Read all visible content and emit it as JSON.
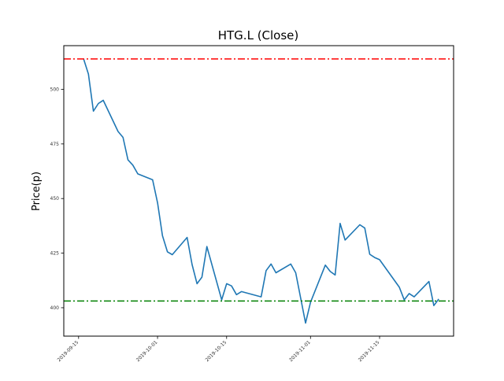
{
  "chart_data": {
    "type": "line",
    "title": "HTG.L (Close)",
    "xlabel": "",
    "ylabel": "Price(p)",
    "xlim": [
      "2019-09-12",
      "2019-11-30"
    ],
    "ylim": [
      387,
      520
    ],
    "grid": false,
    "x_ticks": [
      "2019-09-15",
      "2019-10-01",
      "2019-10-15",
      "2019-11-01",
      "2019-11-15"
    ],
    "y_ticks": [
      400,
      425,
      450,
      475,
      500
    ],
    "series": [
      {
        "color": "#1f77b4",
        "x": [
          "2019-09-16",
          "2019-09-17",
          "2019-09-18",
          "2019-09-19",
          "2019-09-20",
          "2019-09-23",
          "2019-09-24",
          "2019-09-25",
          "2019-09-26",
          "2019-09-27",
          "2019-09-30",
          "2019-10-01",
          "2019-10-02",
          "2019-10-03",
          "2019-10-04",
          "2019-10-07",
          "2019-10-08",
          "2019-10-09",
          "2019-10-10",
          "2019-10-11",
          "2019-10-14",
          "2019-10-15",
          "2019-10-16",
          "2019-10-17",
          "2019-10-18",
          "2019-10-22",
          "2019-10-23",
          "2019-10-24",
          "2019-10-25",
          "2019-10-28",
          "2019-10-29",
          "2019-10-31",
          "2019-11-01",
          "2019-11-04",
          "2019-11-05",
          "2019-11-06",
          "2019-11-07",
          "2019-11-08",
          "2019-11-11",
          "2019-11-12",
          "2019-11-13",
          "2019-11-14",
          "2019-11-15",
          "2019-11-19",
          "2019-11-20",
          "2019-11-21",
          "2019-11-22",
          "2019-11-25",
          "2019-11-26",
          "2019-11-27"
        ],
        "y": [
          514,
          507,
          490,
          493.5,
          495,
          480.7,
          478,
          467.7,
          465.3,
          461.3,
          458.6,
          448,
          433,
          425.6,
          424.3,
          432.2,
          419.8,
          411,
          414,
          428,
          403.6,
          411,
          410,
          406,
          407.4,
          405,
          417,
          420,
          416,
          420,
          416,
          393,
          402.5,
          419.5,
          416.6,
          415,
          438.6,
          431,
          438,
          436.5,
          424.5,
          423,
          422,
          409.4,
          403.6,
          406.5,
          405,
          412,
          401,
          404
        ]
      }
    ],
    "hlines": [
      {
        "value": 513.9,
        "color": "#ff0000",
        "style": "dash-dot"
      },
      {
        "value": 403.1,
        "color": "#008000",
        "style": "dash-dot"
      }
    ]
  }
}
